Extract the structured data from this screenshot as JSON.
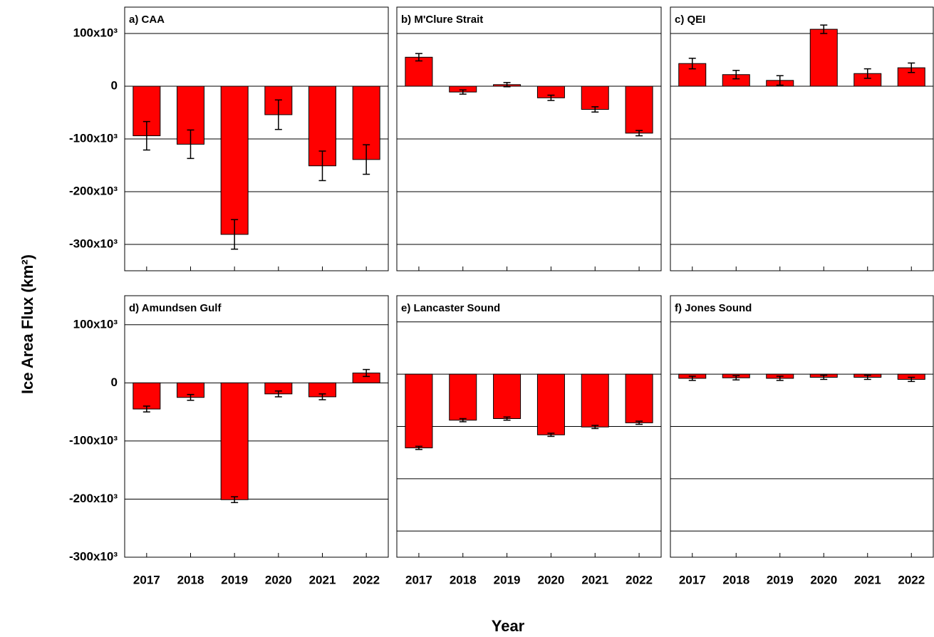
{
  "y_label": "Ice Area Flux (km²)",
  "x_label": "Year",
  "chart_data": [
    {
      "type": "bar",
      "title": "a) CAA",
      "categories": [
        null,
        null,
        null,
        null,
        null,
        null
      ],
      "values": [
        -94000,
        -110000,
        -281000,
        -54000,
        -151000,
        -139000
      ],
      "errors": [
        27000,
        27000,
        28000,
        28000,
        28000,
        28000
      ],
      "color": "#ff0000",
      "ylim": [
        -350000,
        150000
      ],
      "yticks": [
        {
          "value": -300000,
          "label": "-300x10³"
        },
        {
          "value": -200000,
          "label": "-200x10³"
        },
        {
          "value": -100000,
          "label": "-100x10³"
        },
        0,
        {
          "value": 100000,
          "label": "100x10³"
        }
      ],
      "grid": true
    },
    {
      "type": "bar",
      "title": "b) M'Clure Strait",
      "categories": [
        null,
        null,
        null,
        null,
        null,
        null
      ],
      "values": [
        55000,
        -11000,
        3000,
        -22000,
        -44000,
        -89000
      ],
      "errors": [
        7000,
        4000,
        4000,
        5000,
        5000,
        5000
      ],
      "color": "#ff0000",
      "ylim": [
        -350000,
        150000
      ],
      "yticks": [
        -300000,
        -200000,
        -100000,
        0,
        100000
      ],
      "grid": true
    },
    {
      "type": "bar",
      "title": "c) QEI",
      "categories": [
        null,
        null,
        null,
        null,
        null,
        null
      ],
      "values": [
        43000,
        22000,
        11000,
        108000,
        24000,
        35000
      ],
      "errors": [
        10000,
        8000,
        9000,
        8000,
        9000,
        9000
      ],
      "color": "#ff0000",
      "ylim": [
        -350000,
        150000
      ],
      "yticks": [
        -300000,
        -200000,
        -100000,
        0,
        100000
      ],
      "grid": true
    },
    {
      "type": "bar",
      "title": "d) Amundsen Gulf",
      "categories": [
        "2017",
        "2018",
        "2019",
        "2020",
        "2021",
        "2022"
      ],
      "values": [
        -45000,
        -25000,
        -201000,
        -19000,
        -24000,
        17000
      ],
      "errors": [
        5000,
        5000,
        5000,
        5000,
        5000,
        6000
      ],
      "color": "#ff0000",
      "ylim": [
        -300000,
        150000
      ],
      "yticks": [
        {
          "value": -300000,
          "label": "-300x10³"
        },
        {
          "value": -200000,
          "label": "-200x10³"
        },
        {
          "value": -100000,
          "label": "-100x10³"
        },
        0,
        {
          "value": 100000,
          "label": "100x10³"
        }
      ],
      "grid": true
    },
    {
      "type": "bar",
      "title": "e) Lancaster Sound",
      "categories": [
        "2017",
        "2018",
        "2019",
        "2020",
        "2021",
        "2022"
      ],
      "values": [
        -141000,
        -88000,
        -85000,
        -116000,
        -101000,
        -93000
      ],
      "errors": [
        3000,
        3000,
        3000,
        3000,
        3000,
        3000
      ],
      "color": "#ff0000",
      "ylim": [
        -350000,
        150000
      ],
      "yticks": [
        -300000,
        -200000,
        -100000,
        0,
        100000
      ],
      "grid": true
    },
    {
      "type": "bar",
      "title": "f) Jones Sound",
      "categories": [
        "2017",
        "2018",
        "2019",
        "2020",
        "2021",
        "2022"
      ],
      "values": [
        -8000,
        -7000,
        -8000,
        -6000,
        -6000,
        -10000
      ],
      "errors": [
        4000,
        4000,
        4000,
        4000,
        4000,
        4000
      ],
      "color": "#ff0000",
      "ylim": [
        -350000,
        150000
      ],
      "yticks": [
        -300000,
        -200000,
        -100000,
        0,
        100000
      ],
      "grid": true
    }
  ]
}
